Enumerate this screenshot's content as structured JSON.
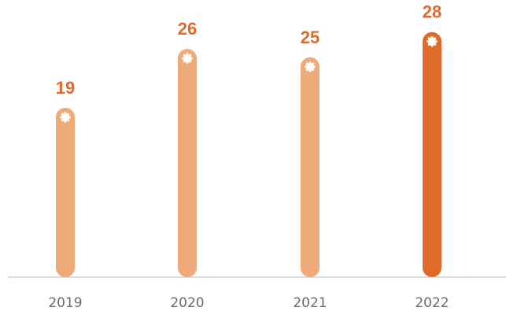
{
  "chart_data": {
    "type": "bar",
    "categories": [
      "2019",
      "2020",
      "2021",
      "2022"
    ],
    "values": [
      19,
      26,
      25,
      28
    ],
    "title": "",
    "xlabel": "",
    "ylabel": "",
    "ylim": [
      0,
      29
    ],
    "grid": false,
    "legend": "none",
    "highlight_category": "2022",
    "colors": {
      "bar": "#EFAA79",
      "highlight_bar": "#E06A2A",
      "value_label": "#E06A2A",
      "axis": "#bdbdbd",
      "marker_fill": "#ffffff"
    },
    "marker_icon": "gear-icon"
  }
}
